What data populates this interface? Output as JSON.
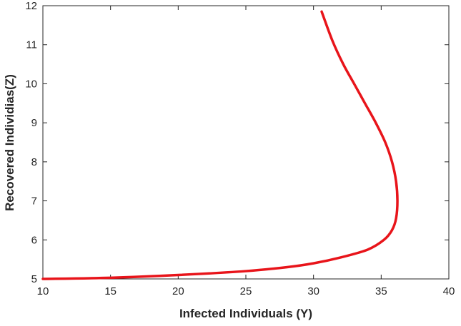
{
  "chart_data": {
    "type": "line",
    "xlabel": "Infected Individuals (Y)",
    "ylabel": "Recovered Individias(Z)",
    "xlim": [
      10,
      40
    ],
    "ylim": [
      5,
      12
    ],
    "xticks": [
      "10",
      "15",
      "20",
      "25",
      "30",
      "35",
      "40"
    ],
    "yticks": [
      "5",
      "6",
      "7",
      "8",
      "9",
      "10",
      "11",
      "12"
    ],
    "grid": false,
    "series": [
      {
        "color": "#e8141a",
        "x": [
          10.0,
          15.0,
          20.0,
          25.0,
          28.0,
          30.0,
          32.0,
          34.0,
          35.2,
          35.8,
          36.1,
          36.2,
          36.1,
          35.8,
          35.3,
          34.6,
          33.8,
          33.0,
          32.2,
          31.4,
          30.6
        ],
        "y": [
          5.0,
          5.03,
          5.1,
          5.2,
          5.3,
          5.4,
          5.55,
          5.75,
          6.0,
          6.25,
          6.55,
          7.0,
          7.5,
          8.0,
          8.5,
          9.0,
          9.5,
          10.0,
          10.5,
          11.1,
          11.85
        ]
      }
    ]
  }
}
